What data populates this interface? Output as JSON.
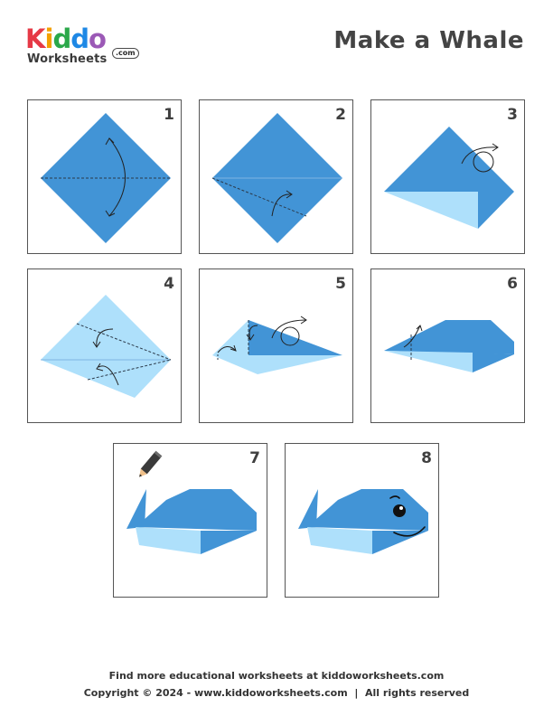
{
  "logo": {
    "letters": [
      {
        "char": "K",
        "color": "#e63946"
      },
      {
        "char": "i",
        "color": "#f4a100"
      },
      {
        "char": "d",
        "color": "#2ba84a"
      },
      {
        "char": "d",
        "color": "#1e88e5"
      },
      {
        "char": "o",
        "color": "#9b59b6"
      }
    ],
    "subtitle": "Worksheets",
    "domain_badge": ".com"
  },
  "title": "Make a Whale",
  "colors": {
    "paper_dark": "#4294d6",
    "paper_light": "#aee0fb",
    "border": "#555555"
  },
  "steps": [
    {
      "number": "1"
    },
    {
      "number": "2"
    },
    {
      "number": "3"
    },
    {
      "number": "4"
    },
    {
      "number": "5"
    },
    {
      "number": "6"
    },
    {
      "number": "7"
    },
    {
      "number": "8"
    }
  ],
  "footer": {
    "line1": "Find more educational worksheets at kiddoworksheets.com",
    "line2": "Copyright © 2024 - www.kiddoworksheets.com  |  All rights reserved"
  }
}
